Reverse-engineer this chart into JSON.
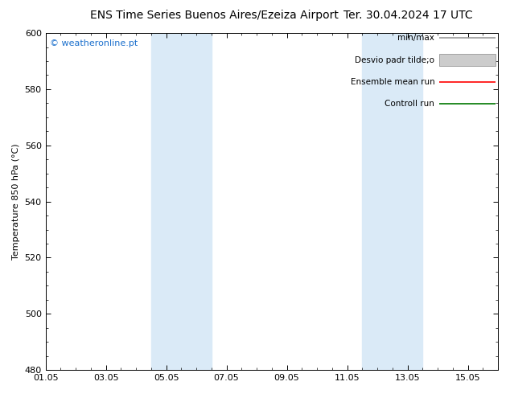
{
  "title_left": "ENS Time Series Buenos Aires/Ezeiza Airport",
  "title_right": "Ter. 30.04.2024 17 UTC",
  "ylabel": "Temperature 850 hPa (°C)",
  "ylim": [
    480,
    600
  ],
  "yticks": [
    480,
    500,
    520,
    540,
    560,
    580,
    600
  ],
  "xtick_labels": [
    "01.05",
    "03.05",
    "05.05",
    "07.05",
    "09.05",
    "11.05",
    "13.05",
    "15.05"
  ],
  "xtick_positions": [
    0,
    2,
    4,
    6,
    8,
    10,
    12,
    14
  ],
  "total_days": 15,
  "shaded_regions": [
    {
      "start": 3.5,
      "end": 5.5,
      "color": "#daeaf7"
    },
    {
      "start": 10.5,
      "end": 12.5,
      "color": "#daeaf7"
    }
  ],
  "watermark": "© weatheronline.pt",
  "watermark_color": "#1a6fcc",
  "legend_items": [
    {
      "label": "min/max",
      "color": "#999999",
      "style": "line"
    },
    {
      "label": "Desvio padr tilde;o",
      "color": "#cccccc",
      "style": "box"
    },
    {
      "label": "Ensemble mean run",
      "color": "#ff0000",
      "style": "line"
    },
    {
      "label": "Controll run",
      "color": "#007700",
      "style": "line"
    }
  ],
  "bg_color": "#ffffff",
  "plot_bg_color": "#ffffff",
  "title_fontsize": 10,
  "tick_fontsize": 8,
  "ylabel_fontsize": 8,
  "legend_fontsize": 7.5
}
